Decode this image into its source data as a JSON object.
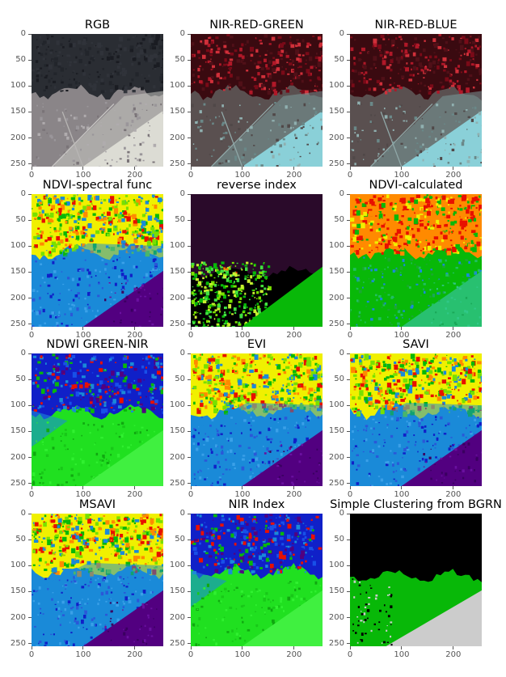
{
  "figure": {
    "colors": {
      "black": "#000000",
      "dark_gray": "#2a2d33",
      "purple": "#520080",
      "blue": "#1020c8",
      "sky": "#1a8ad8",
      "green": "#08b808",
      "lime": "#78e000",
      "yellow": "#f0f000",
      "orange": "#ff8a00",
      "red": "#e81000",
      "light_gray": "#cccccc",
      "reverse_bg": "#2a0a2a"
    }
  },
  "chart_data": [
    {
      "type": "heatmap",
      "title": "RGB",
      "image_kind": "rgb",
      "xlim": [
        0,
        255
      ],
      "ylim": [
        255,
        0
      ],
      "xticks": [
        0,
        100,
        200
      ],
      "yticks": [
        0,
        50,
        100,
        150,
        200,
        250
      ]
    },
    {
      "type": "heatmap",
      "title": "NIR-RED-GREEN",
      "image_kind": "nir_composite",
      "xlim": [
        0,
        255
      ],
      "ylim": [
        255,
        0
      ],
      "xticks": [
        0,
        100,
        200
      ],
      "yticks": [
        0,
        50,
        100,
        150,
        200,
        250
      ]
    },
    {
      "type": "heatmap",
      "title": "NIR-RED-BLUE",
      "image_kind": "nir_composite",
      "xlim": [
        0,
        255
      ],
      "ylim": [
        255,
        0
      ],
      "xticks": [
        0,
        100,
        200
      ],
      "yticks": [
        0,
        50,
        100,
        150,
        200,
        250
      ]
    },
    {
      "type": "heatmap",
      "title": "NDVI-spectral func",
      "image_kind": "ndvi",
      "xlim": [
        0,
        255
      ],
      "ylim": [
        255,
        0
      ],
      "xticks": [
        0,
        100,
        200
      ],
      "yticks": [
        0,
        50,
        100,
        150,
        200,
        250
      ]
    },
    {
      "type": "heatmap",
      "title": "reverse index",
      "image_kind": "reverse",
      "xlim": [
        0,
        255
      ],
      "ylim": [
        255,
        0
      ],
      "xticks": [
        0,
        100,
        200
      ],
      "yticks": [
        0,
        50,
        100,
        150,
        200,
        250
      ]
    },
    {
      "type": "heatmap",
      "title": "NDVI-calculated",
      "image_kind": "ndvi_calc",
      "xlim": [
        0,
        255
      ],
      "ylim": [
        255,
        0
      ],
      "xticks": [
        0,
        100,
        200
      ],
      "yticks": [
        0,
        50,
        100,
        150,
        200,
        250
      ]
    },
    {
      "type": "heatmap",
      "title": "NDWI GREEN-NIR",
      "image_kind": "ndwi",
      "xlim": [
        0,
        255
      ],
      "ylim": [
        255,
        0
      ],
      "xticks": [
        0,
        100,
        200
      ],
      "yticks": [
        0,
        50,
        100,
        150,
        200,
        250
      ]
    },
    {
      "type": "heatmap",
      "title": "EVI",
      "image_kind": "ndvi",
      "xlim": [
        0,
        255
      ],
      "ylim": [
        255,
        0
      ],
      "xticks": [
        0,
        100,
        200
      ],
      "yticks": [
        0,
        50,
        100,
        150,
        200,
        250
      ]
    },
    {
      "type": "heatmap",
      "title": "SAVI",
      "image_kind": "ndvi",
      "xlim": [
        0,
        255
      ],
      "ylim": [
        255,
        0
      ],
      "xticks": [
        0,
        100,
        200
      ],
      "yticks": [
        0,
        50,
        100,
        150,
        200,
        250
      ]
    },
    {
      "type": "heatmap",
      "title": "MSAVI",
      "image_kind": "ndvi",
      "xlim": [
        0,
        255
      ],
      "ylim": [
        255,
        0
      ],
      "xticks": [
        0,
        100,
        200
      ],
      "yticks": [
        0,
        50,
        100,
        150,
        200,
        250
      ]
    },
    {
      "type": "heatmap",
      "title": "NIR Index",
      "image_kind": "ndwi",
      "xlim": [
        0,
        255
      ],
      "ylim": [
        255,
        0
      ],
      "xticks": [
        0,
        100,
        200
      ],
      "yticks": [
        0,
        50,
        100,
        150,
        200,
        250
      ]
    },
    {
      "type": "heatmap",
      "title": "Simple Clustering from BGRN",
      "image_kind": "cluster",
      "xlim": [
        0,
        255
      ],
      "ylim": [
        255,
        0
      ],
      "xticks": [
        0,
        100,
        200
      ],
      "yticks": [
        0,
        50,
        100,
        150,
        200,
        250
      ]
    }
  ]
}
